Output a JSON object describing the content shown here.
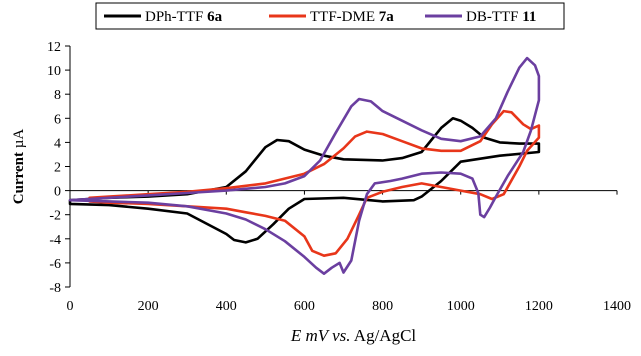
{
  "chart_data": {
    "type": "line",
    "xlabel": {
      "italic": "E mV vs.",
      "plain": " Ag/AgCl"
    },
    "ylabel": {
      "plain": "Current ",
      "unit": "µA"
    },
    "xlim": [
      0,
      1400
    ],
    "ylim": [
      -8,
      12
    ],
    "xticks": [
      0,
      200,
      400,
      600,
      800,
      1000,
      1200,
      1400
    ],
    "yticks": [
      -8,
      -6,
      -4,
      -2,
      0,
      2,
      4,
      6,
      8,
      10,
      12
    ],
    "grid": false,
    "legend_position": "top",
    "series": [
      {
        "name": "DPh-TTF ",
        "name_bold": "6a",
        "color": "#000000",
        "points": [
          [
            0,
            -0.8
          ],
          [
            100,
            -0.6
          ],
          [
            200,
            -0.5
          ],
          [
            300,
            -0.3
          ],
          [
            350,
            0
          ],
          [
            400,
            0.3
          ],
          [
            450,
            1.6
          ],
          [
            500,
            3.6
          ],
          [
            530,
            4.2
          ],
          [
            560,
            4.1
          ],
          [
            600,
            3.4
          ],
          [
            650,
            2.9
          ],
          [
            700,
            2.6
          ],
          [
            800,
            2.5
          ],
          [
            850,
            2.7
          ],
          [
            900,
            3.2
          ],
          [
            950,
            5.2
          ],
          [
            980,
            6.0
          ],
          [
            1000,
            5.8
          ],
          [
            1030,
            5.2
          ],
          [
            1060,
            4.4
          ],
          [
            1100,
            4.0
          ],
          [
            1150,
            3.9
          ],
          [
            1200,
            3.9
          ],
          [
            1200,
            3.2
          ],
          [
            1100,
            2.9
          ],
          [
            1000,
            2.4
          ],
          [
            950,
            0.8
          ],
          [
            900,
            -0.5
          ],
          [
            880,
            -0.8
          ],
          [
            800,
            -0.9
          ],
          [
            700,
            -0.6
          ],
          [
            600,
            -0.7
          ],
          [
            560,
            -1.5
          ],
          [
            520,
            -2.8
          ],
          [
            480,
            -4.0
          ],
          [
            450,
            -4.3
          ],
          [
            420,
            -4.1
          ],
          [
            400,
            -3.6
          ],
          [
            300,
            -1.9
          ],
          [
            200,
            -1.5
          ],
          [
            100,
            -1.2
          ],
          [
            0,
            -1.1
          ]
        ]
      },
      {
        "name": "TTF-DME ",
        "name_bold": "7a",
        "color": "#e8361a",
        "points": [
          [
            50,
            -0.6
          ],
          [
            100,
            -0.5
          ],
          [
            200,
            -0.3
          ],
          [
            300,
            -0.1
          ],
          [
            400,
            0.2
          ],
          [
            500,
            0.6
          ],
          [
            600,
            1.4
          ],
          [
            650,
            2.2
          ],
          [
            700,
            3.5
          ],
          [
            730,
            4.5
          ],
          [
            760,
            4.9
          ],
          [
            800,
            4.7
          ],
          [
            850,
            4.1
          ],
          [
            900,
            3.5
          ],
          [
            950,
            3.3
          ],
          [
            1000,
            3.3
          ],
          [
            1050,
            4.1
          ],
          [
            1080,
            5.5
          ],
          [
            1110,
            6.6
          ],
          [
            1130,
            6.5
          ],
          [
            1160,
            5.5
          ],
          [
            1180,
            5.1
          ],
          [
            1200,
            5.4
          ],
          [
            1200,
            4.4
          ],
          [
            1170,
            3.3
          ],
          [
            1150,
            2.0
          ],
          [
            1110,
            -0.3
          ],
          [
            1080,
            -0.7
          ],
          [
            1050,
            -0.3
          ],
          [
            1000,
            0
          ],
          [
            950,
            0.3
          ],
          [
            900,
            0.6
          ],
          [
            850,
            0.3
          ],
          [
            800,
            -0.1
          ],
          [
            760,
            -0.6
          ],
          [
            740,
            -2.0
          ],
          [
            710,
            -4.0
          ],
          [
            680,
            -5.2
          ],
          [
            650,
            -5.4
          ],
          [
            620,
            -5.0
          ],
          [
            600,
            -3.8
          ],
          [
            550,
            -2.5
          ],
          [
            500,
            -2.1
          ],
          [
            450,
            -1.8
          ],
          [
            400,
            -1.5
          ],
          [
            300,
            -1.3
          ],
          [
            200,
            -1.1
          ],
          [
            100,
            -1.0
          ],
          [
            50,
            -0.9
          ]
        ]
      },
      {
        "name": "DB-TTF ",
        "name_bold": "11",
        "color": "#6b3fa0",
        "points": [
          [
            0,
            -0.8
          ],
          [
            100,
            -0.6
          ],
          [
            200,
            -0.4
          ],
          [
            300,
            -0.2
          ],
          [
            400,
            0
          ],
          [
            500,
            0.3
          ],
          [
            550,
            0.6
          ],
          [
            600,
            1.2
          ],
          [
            640,
            2.5
          ],
          [
            680,
            4.8
          ],
          [
            720,
            7.0
          ],
          [
            740,
            7.6
          ],
          [
            770,
            7.4
          ],
          [
            800,
            6.6
          ],
          [
            850,
            5.8
          ],
          [
            900,
            5.0
          ],
          [
            950,
            4.3
          ],
          [
            1000,
            4.1
          ],
          [
            1050,
            4.5
          ],
          [
            1090,
            6.0
          ],
          [
            1120,
            8.2
          ],
          [
            1150,
            10.2
          ],
          [
            1170,
            11.0
          ],
          [
            1190,
            10.4
          ],
          [
            1200,
            9.5
          ],
          [
            1200,
            7.5
          ],
          [
            1180,
            5.0
          ],
          [
            1160,
            3.2
          ],
          [
            1120,
            1.2
          ],
          [
            1090,
            -0.5
          ],
          [
            1075,
            -1.4
          ],
          [
            1060,
            -2.2
          ],
          [
            1050,
            -2.0
          ],
          [
            1045,
            -0.2
          ],
          [
            1030,
            1.0
          ],
          [
            1000,
            1.4
          ],
          [
            950,
            1.5
          ],
          [
            900,
            1.4
          ],
          [
            850,
            1.0
          ],
          [
            820,
            0.8
          ],
          [
            780,
            0.6
          ],
          [
            760,
            -0.3
          ],
          [
            740,
            -2.5
          ],
          [
            720,
            -5.8
          ],
          [
            700,
            -6.8
          ],
          [
            690,
            -6.0
          ],
          [
            670,
            -6.4
          ],
          [
            650,
            -6.9
          ],
          [
            630,
            -6.4
          ],
          [
            600,
            -5.5
          ],
          [
            550,
            -4.2
          ],
          [
            500,
            -3.2
          ],
          [
            450,
            -2.4
          ],
          [
            400,
            -1.9
          ],
          [
            300,
            -1.3
          ],
          [
            200,
            -1.0
          ],
          [
            100,
            -0.9
          ],
          [
            0,
            -0.8
          ]
        ]
      }
    ]
  }
}
